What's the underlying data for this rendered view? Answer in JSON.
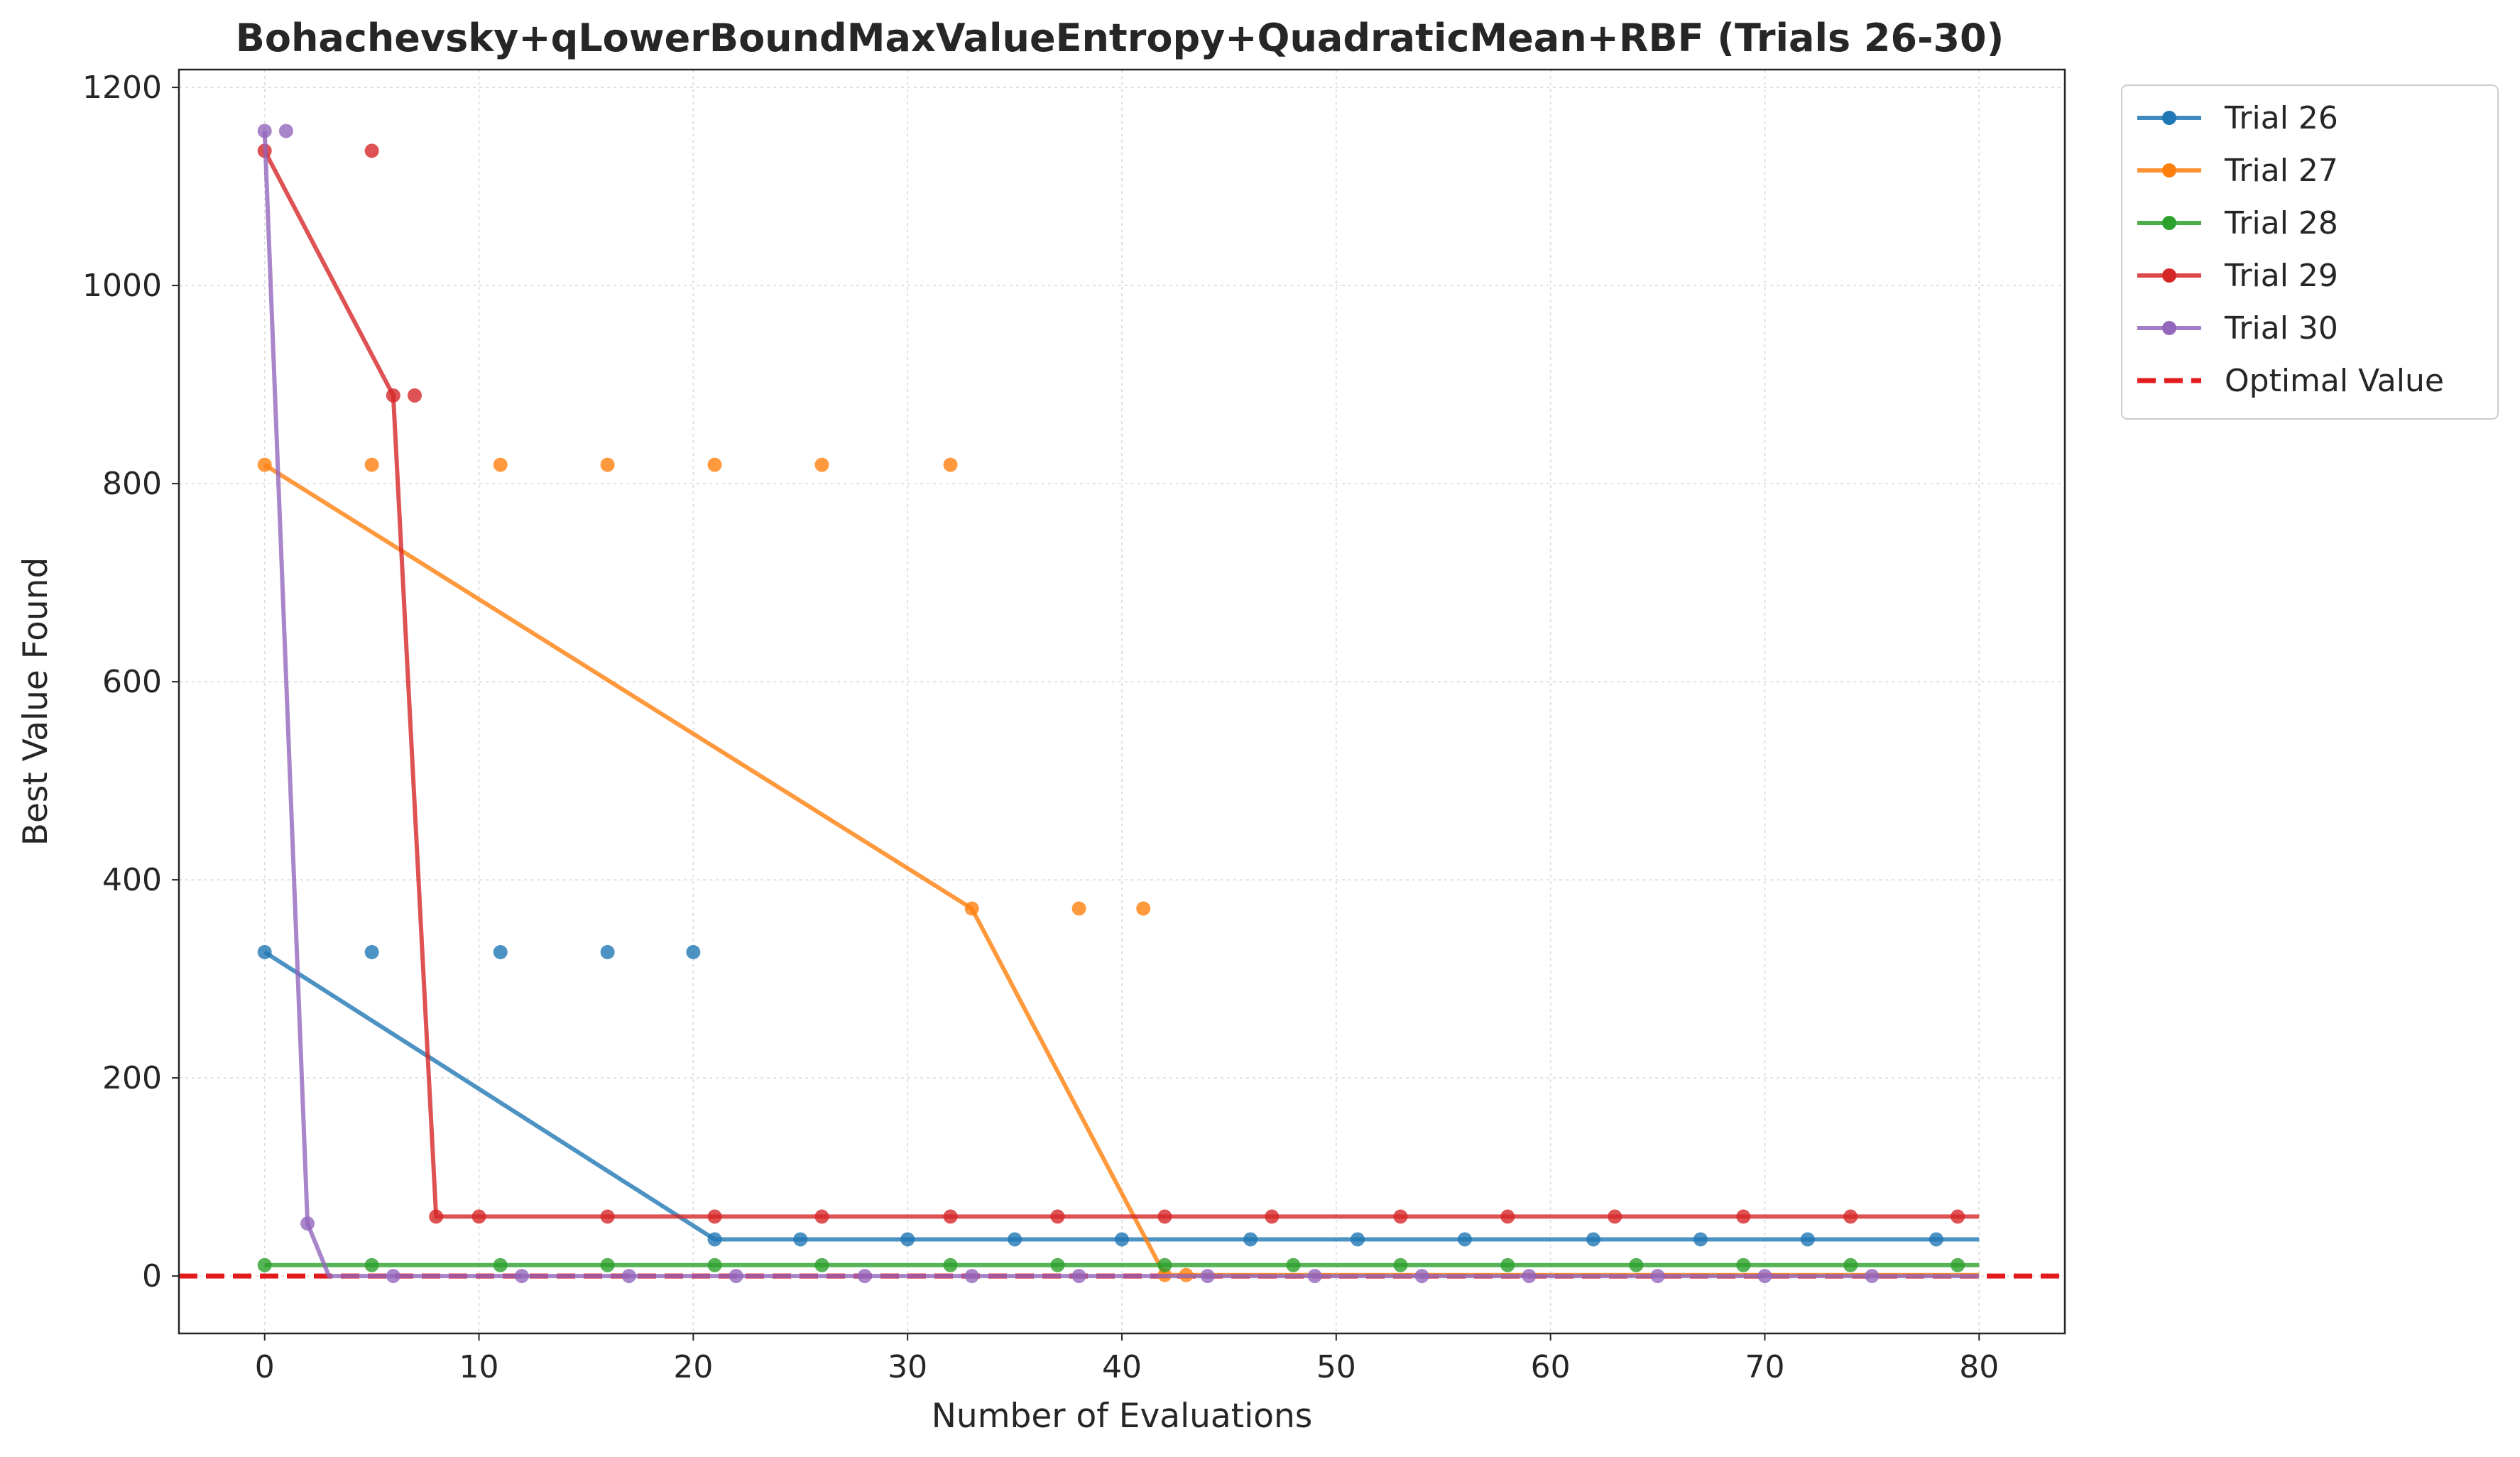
{
  "chart_data": {
    "type": "line",
    "title": "Bohachevsky+qLowerBoundMaxValueEntropy+QuadraticMean+RBF (Trials 26-30)",
    "xlabel": "Number of Evaluations",
    "ylabel": "Best Value Found",
    "xlim": [
      -4,
      84
    ],
    "ylim": [
      -58,
      1218
    ],
    "xticks": [
      0,
      10,
      20,
      30,
      40,
      50,
      60,
      70,
      80
    ],
    "yticks": [
      0,
      200,
      400,
      600,
      800,
      1000,
      1200
    ],
    "grid": true,
    "legend_position": "outside-top-right",
    "series": [
      {
        "name": "Trial 26",
        "color": "#1f77b4",
        "steps": [
          [
            0,
            327
          ],
          [
            21,
            37
          ],
          [
            80,
            37
          ]
        ],
        "markers": [
          0,
          5,
          11,
          16,
          20,
          21,
          25,
          30,
          35,
          40,
          46,
          51,
          56,
          62,
          67,
          72,
          78
        ]
      },
      {
        "name": "Trial 27",
        "color": "#ff7f0e",
        "steps": [
          [
            0,
            819
          ],
          [
            33,
            371
          ],
          [
            42,
            1
          ],
          [
            80,
            1
          ]
        ],
        "markers": [
          0,
          5,
          11,
          16,
          21,
          26,
          32,
          33,
          38,
          41,
          42,
          43
        ]
      },
      {
        "name": "Trial 28",
        "color": "#2ca02c",
        "steps": [
          [
            0,
            11
          ],
          [
            80,
            11
          ]
        ],
        "markers": [
          0,
          5,
          11,
          16,
          21,
          26,
          32,
          37,
          42,
          48,
          53,
          58,
          64,
          69,
          74,
          79
        ]
      },
      {
        "name": "Trial 29",
        "color": "#d62728",
        "steps": [
          [
            0,
            1136
          ],
          [
            6,
            889
          ],
          [
            8,
            60
          ],
          [
            80,
            60
          ]
        ],
        "markers": [
          0,
          5,
          6,
          7,
          8,
          10,
          16,
          21,
          26,
          32,
          37,
          42,
          47,
          53,
          58,
          63,
          69,
          74,
          79
        ]
      },
      {
        "name": "Trial 30",
        "color": "#9467bd",
        "steps": [
          [
            0,
            1156
          ],
          [
            2,
            53
          ],
          [
            3,
            0
          ],
          [
            80,
            0
          ]
        ],
        "markers": [
          0,
          1,
          2,
          6,
          12,
          17,
          22,
          28,
          33,
          38,
          44,
          49,
          54,
          59,
          65,
          70,
          75
        ]
      }
    ],
    "reference_line": {
      "name": "Optimal Value",
      "y": 0,
      "color": "#e31a1c",
      "style": "dashed"
    }
  }
}
